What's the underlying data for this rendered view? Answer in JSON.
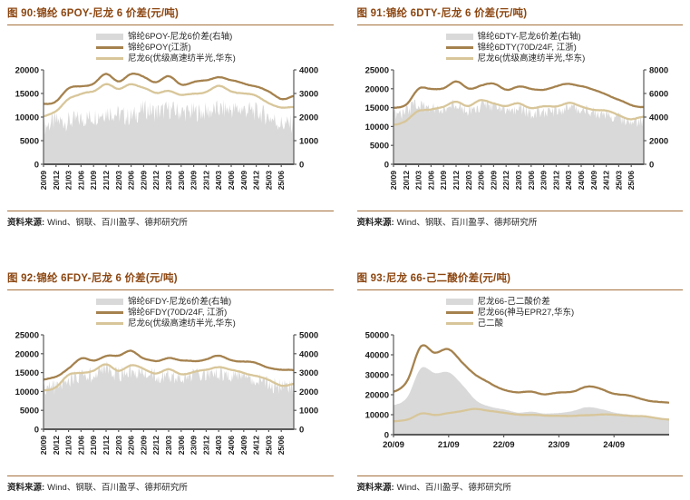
{
  "chart_data": [
    {
      "type": "combo",
      "title": "图 90:锦纶 6POY-尼龙 6 价差(元/吨)",
      "source_label": "资料来源:",
      "source_text": "Wind、钢联、百川盈孚、德邦研究所",
      "left_axis": {
        "min": 0,
        "max": 20000,
        "ticks": [
          0,
          5000,
          10000,
          15000,
          20000
        ]
      },
      "right_axis": {
        "min": 0,
        "max": 4000,
        "ticks": [
          0,
          1000,
          2000,
          3000,
          4000
        ]
      },
      "x_rotate": true,
      "x_ticks": [
        "20/09",
        "20/12",
        "21/03",
        "21/06",
        "21/09",
        "21/12",
        "22/03",
        "22/06",
        "22/09",
        "22/12",
        "23/03",
        "23/06",
        "23/09",
        "23/12",
        "24/03",
        "24/06",
        "24/09",
        "24/12",
        "25/03",
        "25/06"
      ],
      "x_tick_idx": [
        0,
        1,
        2,
        3,
        4,
        5,
        6,
        7,
        8,
        9,
        10,
        11,
        12,
        13,
        14,
        15,
        16,
        17,
        18,
        19
      ],
      "series": [
        {
          "name": "锦纶6POY-尼龙6价差(右轴)",
          "style": "bars",
          "axis": "right",
          "color": "#d9d9d9",
          "noise": 500,
          "values": [
            1800,
            2000,
            2000,
            2100,
            2200,
            2400,
            2300,
            2200,
            2500,
            2400,
            2500,
            2400,
            2400,
            2400,
            2500,
            2500,
            2500,
            2400,
            2200,
            1900,
            1900
          ]
        },
        {
          "name": "锦纶6POY(江浙)",
          "style": "line",
          "axis": "left",
          "color": "#a5824e",
          "noise": 350,
          "values": [
            12600,
            13400,
            16000,
            16800,
            17300,
            19200,
            17800,
            19000,
            18400,
            17300,
            18300,
            16900,
            17400,
            17800,
            18800,
            17900,
            17300,
            16600,
            15200,
            13800,
            14200
          ]
        },
        {
          "name": "尼龙6(优级高速纺半光,华东)",
          "style": "line",
          "axis": "left",
          "color": "#d8c69a",
          "noise": 350,
          "values": [
            10400,
            11300,
            14100,
            14800,
            15300,
            16900,
            15600,
            16900,
            16200,
            15100,
            15900,
            14800,
            15100,
            15500,
            16400,
            15400,
            14800,
            14200,
            13000,
            11900,
            12200
          ]
        }
      ]
    },
    {
      "type": "combo",
      "title": "图 91:锦纶 6DTY-尼龙 6 价差(元/吨)",
      "source_label": "资料来源:",
      "source_text": "Wind、钢联、百川盈孚、德邦研究所",
      "left_axis": {
        "min": 0,
        "max": 25000,
        "ticks": [
          0,
          5000,
          10000,
          15000,
          20000,
          25000
        ]
      },
      "right_axis": {
        "min": 0,
        "max": 8000,
        "ticks": [
          0,
          2000,
          4000,
          6000,
          8000
        ]
      },
      "x_rotate": true,
      "x_ticks": [
        "20/09",
        "20/12",
        "21/03",
        "21/06",
        "21/09",
        "21/12",
        "22/03",
        "22/06",
        "22/09",
        "22/12",
        "23/03",
        "23/06",
        "23/09",
        "23/12",
        "24/03",
        "24/06",
        "24/09",
        "24/12",
        "25/03",
        "25/06"
      ],
      "x_tick_idx": [
        0,
        1,
        2,
        3,
        4,
        5,
        6,
        7,
        8,
        9,
        10,
        11,
        12,
        13,
        14,
        15,
        16,
        17,
        18,
        19
      ],
      "series": [
        {
          "name": "锦纶6DTY-尼龙6价差(右轴)",
          "style": "bars",
          "axis": "right",
          "color": "#d9d9d9",
          "noise": 650,
          "values": [
            4600,
            4700,
            5400,
            4900,
            5000,
            5300,
            4800,
            5200,
            5100,
            4700,
            5000,
            4600,
            4700,
            4800,
            5000,
            4900,
            4700,
            4500,
            4200,
            3900,
            4000
          ]
        },
        {
          "name": "锦纶6DTY(70D/24F, 江浙)",
          "style": "line",
          "axis": "left",
          "color": "#a5824e",
          "noise": 380,
          "values": [
            14800,
            15800,
            19800,
            19600,
            20100,
            21700,
            20100,
            21100,
            21400,
            20100,
            20700,
            19900,
            19800,
            20300,
            21100,
            20600,
            19500,
            18700,
            17200,
            15800,
            15500
          ]
        },
        {
          "name": "尼龙6(优级高速纺半光,华东)",
          "style": "line",
          "axis": "left",
          "color": "#d8c69a",
          "noise": 380,
          "values": [
            10400,
            11300,
            14100,
            14800,
            15300,
            16900,
            15600,
            16900,
            16200,
            15100,
            15900,
            14800,
            15100,
            15500,
            16400,
            15400,
            14800,
            14200,
            13000,
            11900,
            12200
          ]
        }
      ]
    },
    {
      "type": "combo",
      "title": "图 92:锦纶 6FDY-尼龙 6 价差(元/吨)",
      "source_label": "资料来源:",
      "source_text": "Wind、钢联、百川盈孚、德邦研究所",
      "left_axis": {
        "min": 0,
        "max": 25000,
        "ticks": [
          0,
          5000,
          10000,
          15000,
          20000,
          25000
        ]
      },
      "right_axis": {
        "min": 0,
        "max": 5000,
        "ticks": [
          0,
          1000,
          2000,
          3000,
          4000,
          5000
        ]
      },
      "x_rotate": true,
      "x_ticks": [
        "20/09",
        "20/12",
        "21/03",
        "21/06",
        "21/09",
        "21/12",
        "22/03",
        "22/06",
        "22/09",
        "22/12",
        "23/03",
        "23/06",
        "23/09",
        "23/12",
        "24/03",
        "24/06",
        "24/09",
        "24/12",
        "25/03",
        "25/06"
      ],
      "x_tick_idx": [
        0,
        1,
        2,
        3,
        4,
        5,
        6,
        7,
        8,
        9,
        10,
        11,
        12,
        13,
        14,
        15,
        16,
        17,
        18,
        19
      ],
      "series": [
        {
          "name": "锦纶6FDY-尼龙6价差(右轴)",
          "style": "bars",
          "axis": "right",
          "color": "#d9d9d9",
          "noise": 520,
          "values": [
            2300,
            2500,
            2800,
            3000,
            3100,
            3400,
            3100,
            3300,
            3200,
            3000,
            3100,
            2900,
            3000,
            3100,
            3200,
            3000,
            2900,
            2800,
            2600,
            2400,
            2400
          ]
        },
        {
          "name": "锦纶6FDY(70D/24F, 江浙)",
          "style": "line",
          "axis": "left",
          "color": "#a5824e",
          "noise": 380,
          "values": [
            13200,
            14000,
            16500,
            18800,
            18300,
            19500,
            19200,
            20700,
            18500,
            17800,
            19000,
            18200,
            18300,
            18800,
            19500,
            18500,
            17800,
            17300,
            16200,
            15400,
            15600
          ]
        },
        {
          "name": "尼龙6(优级高速纺半光,华东)",
          "style": "line",
          "axis": "left",
          "color": "#d8c69a",
          "noise": 380,
          "values": [
            10400,
            11300,
            14100,
            14800,
            15300,
            16900,
            15600,
            16900,
            16200,
            15100,
            15900,
            14800,
            15100,
            15500,
            16400,
            15400,
            14800,
            14200,
            13000,
            11900,
            12200
          ]
        }
      ]
    },
    {
      "type": "combo",
      "title": "图 93:尼龙 66-己二酸价差(元/吨)",
      "source_label": "资料来源:",
      "source_text": "Wind、百川盈孚、德邦研究所",
      "left_axis": {
        "min": 0,
        "max": 50000,
        "ticks": [
          0,
          10000,
          20000,
          30000,
          40000,
          50000
        ]
      },
      "right_axis": null,
      "x_rotate": false,
      "x_ticks": [
        "20/09",
        "21/09",
        "22/09",
        "23/09",
        "24/09"
      ],
      "x_tick_idx": [
        0,
        4,
        8,
        12,
        16
      ],
      "series": [
        {
          "name": "尼龙66-己二酸价差",
          "style": "area",
          "axis": "left",
          "color": "#d9d9d9",
          "noise": 500,
          "values": [
            15000,
            18700,
            33200,
            31000,
            31300,
            24700,
            17200,
            14200,
            12500,
            11000,
            11700,
            10500,
            10700,
            12000,
            13800,
            12700,
            11200,
            10300,
            9300,
            8800,
            8200
          ]
        },
        {
          "name": "尼龙66(神马EPR27,华东)",
          "style": "line",
          "axis": "left",
          "color": "#a5824e",
          "noise": 600,
          "values": [
            21500,
            26500,
            44000,
            41000,
            42500,
            36500,
            30000,
            26000,
            23000,
            21000,
            21500,
            20000,
            20500,
            21500,
            23800,
            23000,
            21000,
            19800,
            18300,
            16800,
            15800
          ]
        },
        {
          "name": "己二酸",
          "style": "line",
          "axis": "left",
          "color": "#d8c69a",
          "noise": 420,
          "values": [
            6500,
            7800,
            10800,
            10000,
            11200,
            11800,
            12800,
            11800,
            10500,
            10000,
            9800,
            9500,
            9800,
            9500,
            10000,
            10300,
            9800,
            9500,
            9000,
            8000,
            7600
          ]
        }
      ]
    }
  ]
}
